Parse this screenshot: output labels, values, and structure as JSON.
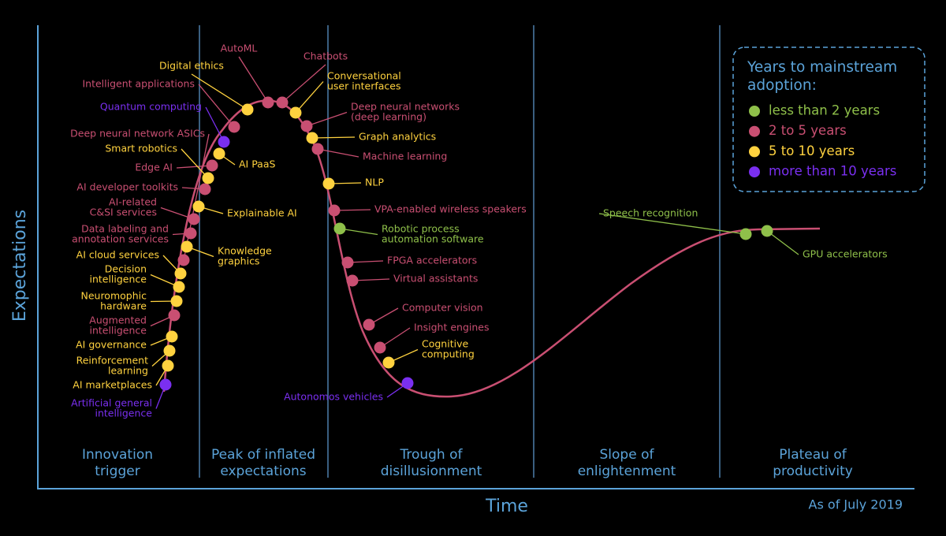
{
  "axes": {
    "y_label": "Expectations",
    "x_label": "Time",
    "note": "As of July 2019"
  },
  "phases": [
    [
      "Innovation",
      "trigger"
    ],
    [
      "Peak of inflated",
      "expectations"
    ],
    [
      "Trough of",
      "disillusionment"
    ],
    [
      "Slope of",
      "enlightenment"
    ],
    [
      "Plateau of",
      "productivity"
    ]
  ],
  "legend": {
    "title": [
      "Years to mainstream",
      "adoption:"
    ],
    "entries": [
      {
        "label": "less than 2 years",
        "color": "#8fc04a"
      },
      {
        "label": "2 to 5 years",
        "color": "#c94f72"
      },
      {
        "label": "5 to 10 years",
        "color": "#ffd23f"
      },
      {
        "label": "more than 10 years",
        "color": "#7a2ff0"
      }
    ]
  },
  "groups": [
    [
      {
        "label": [
          "Speech recognition"
        ]
      },
      {
        "label": [
          "Robotic process",
          "automation software"
        ]
      },
      {
        "label": [
          "GPU accelerators"
        ]
      }
    ],
    [
      {
        "label": [
          "AutoML"
        ]
      },
      {
        "label": [
          "Chatbots"
        ]
      },
      {
        "label": [
          "Intelligent applications"
        ]
      },
      {
        "label": [
          "Deep neural networks",
          "(deep learning)"
        ]
      },
      {
        "label": [
          "Machine learning"
        ]
      },
      {
        "label": [
          "Edge AI"
        ]
      },
      {
        "label": [
          "AI developer toolkits"
        ]
      },
      {
        "label": [
          "AI-related",
          "C&SI services"
        ]
      },
      {
        "label": [
          "Data labeling and",
          "annotation services"
        ]
      },
      {
        "label": [
          "VPA-enabled wireless speakers"
        ]
      },
      {
        "label": [
          "FPGA accelerators"
        ]
      },
      {
        "label": [
          "Virtual assistants"
        ]
      },
      {
        "label": [
          "Augmented",
          "intelligence"
        ]
      },
      {
        "label": [
          "Computer vision"
        ]
      },
      {
        "label": [
          "Insight engines"
        ]
      },
      {
        "label": [
          "Deep neural network ASICs"
        ]
      }
    ],
    [
      {
        "label": [
          "Digital ethics"
        ]
      },
      {
        "label": [
          "Conversational",
          "user interfaces"
        ]
      },
      {
        "label": [
          "Graph analytics"
        ]
      },
      {
        "label": [
          "Smart robotics"
        ]
      },
      {
        "label": [
          "AI PaaS"
        ]
      },
      {
        "label": [
          "Explainable AI"
        ]
      },
      {
        "label": [
          "Knowledge",
          "graphics"
        ]
      },
      {
        "label": [
          "AI cloud services"
        ]
      },
      {
        "label": [
          "Decision",
          "intelligence"
        ]
      },
      {
        "label": [
          "Neuromophic",
          "hardware"
        ]
      },
      {
        "label": [
          "AI governance"
        ]
      },
      {
        "label": [
          "Reinforcement",
          "learning"
        ]
      },
      {
        "label": [
          "AI marketplaces"
        ]
      },
      {
        "label": [
          "NLP"
        ]
      },
      {
        "label": [
          "Cognitive",
          "computing"
        ]
      }
    ],
    [
      {
        "label": [
          "Quantum computing"
        ]
      },
      {
        "label": [
          "Artificial general",
          "intelligence"
        ]
      },
      {
        "label": [
          "Autonomos vehicles"
        ]
      }
    ]
  ]
}
